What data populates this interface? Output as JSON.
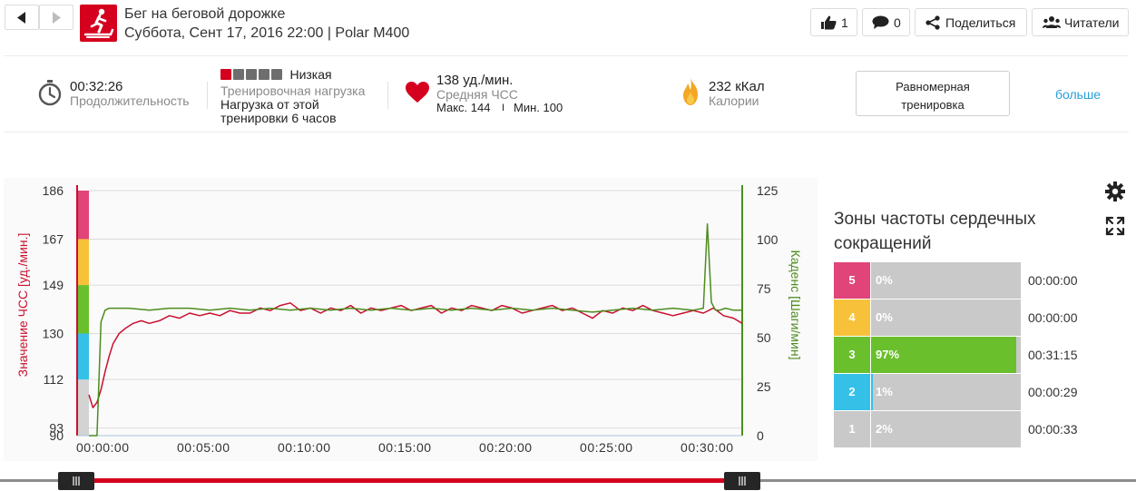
{
  "header": {
    "title": "Бег на беговой дорожке",
    "subtitle": "Суббота, Сент 17, 2016 22:00 | Polar M400",
    "like_count": "1",
    "comment_count": "0",
    "share_label": "Поделиться",
    "readers_label": "Читатели"
  },
  "summary": {
    "duration_value": "00:32:26",
    "duration_label": "Продолжительность",
    "load_level": "Низкая",
    "load_squares_filled": 1,
    "load_squares_total": 5,
    "load_label": "Тренировочная нагрузка",
    "load_desc_line1": "Нагрузка от этой",
    "load_desc_line2": "тренировки 6 часов",
    "hr_value": "138 уд./мин.",
    "hr_label": "Средняя ЧСС",
    "hr_max": "Макс. 144",
    "hr_sep": "I",
    "hr_min": "Мин. 100",
    "calories_value": "232 кКал",
    "calories_label": "Калории",
    "training_type_line1": "Равномерная",
    "training_type_line2": "тренировка",
    "more_link": "больше"
  },
  "chart": {
    "left_axis_title": "Значение ЧСС [уд./мин.]",
    "right_axis_title": "Каденс [Шаги/мин]",
    "left_color": "#c8102e",
    "right_color": "#4c8c1e",
    "zone_colors": [
      "#d3d3d3",
      "#35c0e8",
      "#6abf2d",
      "#f7c23a",
      "#e04478"
    ]
  },
  "chart_data": {
    "type": "line",
    "x_unit": "time (mm:ss)",
    "x_ticks": [
      "00:00:00",
      "00:05:00",
      "00:10:00",
      "00:15:00",
      "00:20:00",
      "00:25:00",
      "00:30:00"
    ],
    "xlim": [
      0,
      32.43
    ],
    "left_ticks": [
      "90",
      "93",
      "112",
      "130",
      "149",
      "167",
      "186"
    ],
    "right_ticks": [
      "0",
      "25",
      "50",
      "75",
      "100",
      "125"
    ],
    "ylim_left": [
      90,
      186
    ],
    "ylim_right": [
      0,
      125
    ],
    "zone_bounds": [
      90,
      112,
      130,
      149,
      167,
      186
    ],
    "series": [
      {
        "name": "Значение ЧСС [уд./мин.]",
        "axis": "left",
        "x": [
          0,
          0.2,
          0.4,
          0.6,
          0.8,
          1.0,
          1.2,
          1.5,
          1.8,
          2.2,
          2.6,
          3.0,
          3.5,
          4.0,
          4.5,
          5.0,
          5.5,
          6.0,
          6.5,
          7.0,
          7.5,
          8.0,
          8.5,
          9.0,
          9.5,
          10.0,
          10.5,
          11.0,
          11.5,
          12.0,
          12.5,
          13.0,
          13.5,
          14.0,
          14.5,
          15.0,
          15.5,
          16.0,
          16.5,
          17.0,
          17.5,
          18.0,
          18.5,
          19.0,
          19.5,
          20.0,
          20.5,
          21.0,
          21.5,
          22.0,
          22.5,
          23.0,
          23.5,
          24.0,
          24.5,
          25.0,
          25.5,
          26.0,
          26.5,
          27.0,
          27.5,
          28.0,
          28.5,
          29.0,
          29.5,
          30.0,
          30.5,
          31.0,
          31.5,
          32.0,
          32.43
        ],
        "values": [
          106,
          101,
          103,
          108,
          115,
          121,
          126,
          130,
          132,
          134,
          135,
          134,
          135,
          137,
          136,
          138,
          137,
          138,
          137,
          139,
          138,
          138,
          140,
          139,
          141,
          142,
          139,
          140,
          138,
          140,
          139,
          141,
          138,
          140,
          139,
          140,
          141,
          139,
          140,
          141,
          138,
          140,
          139,
          141,
          140,
          139,
          141,
          140,
          138,
          139,
          140,
          141,
          139,
          140,
          138,
          136,
          139,
          138,
          140,
          139,
          141,
          139,
          138,
          137,
          138,
          139,
          138,
          140,
          137,
          136,
          134
        ]
      },
      {
        "name": "Каденс [Шаги/мин]",
        "axis": "right",
        "x": [
          0,
          0.4,
          0.6,
          0.8,
          1.0,
          1.5,
          2.0,
          3.0,
          4.0,
          5.0,
          6.0,
          7.0,
          8.0,
          9.0,
          10.0,
          11.0,
          12.0,
          13.0,
          14.0,
          15.0,
          16.0,
          17.0,
          18.0,
          19.0,
          20.0,
          21.0,
          22.0,
          23.0,
          24.0,
          25.0,
          26.0,
          27.0,
          28.0,
          29.0,
          30.0,
          30.5,
          30.7,
          30.9,
          31.1,
          31.3,
          31.6,
          32.0,
          32.43
        ],
        "values": [
          0,
          0,
          58,
          64,
          65,
          65,
          65,
          64,
          65,
          65,
          64,
          65,
          64,
          65,
          64,
          65,
          64,
          65,
          64,
          65,
          64,
          65,
          64,
          65,
          64,
          65,
          64,
          65,
          64,
          63,
          64,
          65,
          64,
          65,
          64,
          65,
          108,
          68,
          64,
          64,
          65,
          64,
          64
        ]
      }
    ],
    "grid": true
  },
  "zones": {
    "title": "Зоны частоты сердечных сокращений",
    "rows": [
      {
        "zone": "5",
        "percent": "0%",
        "fraction": 0.0,
        "time": "00:00:00",
        "color": "#e04478"
      },
      {
        "zone": "4",
        "percent": "0%",
        "fraction": 0.0,
        "time": "00:00:00",
        "color": "#f7c23a"
      },
      {
        "zone": "3",
        "percent": "97%",
        "fraction": 0.97,
        "time": "00:31:15",
        "color": "#6abf2d"
      },
      {
        "zone": "2",
        "percent": "1%",
        "fraction": 0.01,
        "time": "00:00:29",
        "color": "#35c0e8"
      },
      {
        "zone": "1",
        "percent": "2%",
        "fraction": 0.02,
        "time": "00:00:33",
        "color": "#c9c9c9"
      }
    ]
  }
}
